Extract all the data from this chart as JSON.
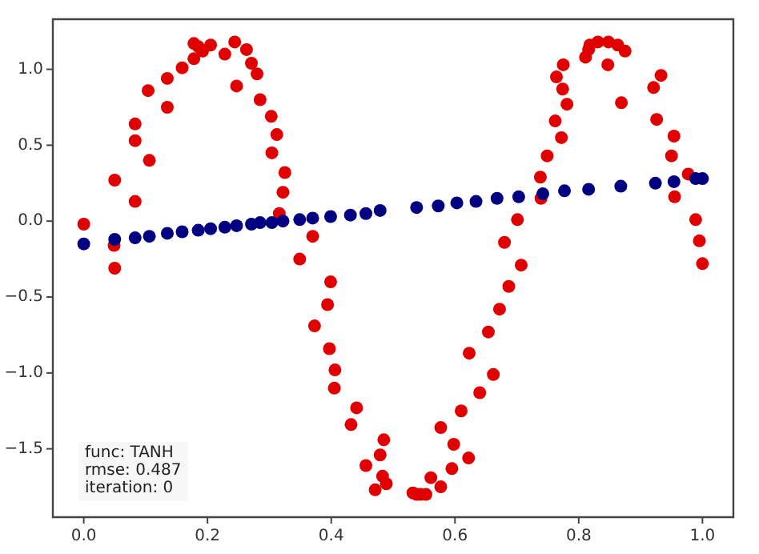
{
  "chart_data": {
    "type": "scatter",
    "xlim": [
      -0.05,
      1.05
    ],
    "ylim": [
      -1.95,
      1.33
    ],
    "xticks": [
      {
        "value": 0,
        "label": "0.0"
      },
      {
        "value": 0.2,
        "label": "0.2"
      },
      {
        "value": 0.4,
        "label": "0.4"
      },
      {
        "value": 0.6,
        "label": "0.6"
      },
      {
        "value": 0.8,
        "label": "0.8"
      },
      {
        "value": 1,
        "label": "1.0"
      }
    ],
    "yticks": [
      {
        "value": -1.5,
        "label": "−1.5"
      },
      {
        "value": -1,
        "label": "−1.0"
      },
      {
        "value": -0.5,
        "label": "−0.5"
      },
      {
        "value": 0,
        "label": "0.0"
      },
      {
        "value": 0.5,
        "label": "0.5"
      },
      {
        "value": 1,
        "label": "1.0"
      }
    ],
    "grid": false,
    "legend": false,
    "marker": "circle",
    "annotations": [
      "func: TANH",
      "rmse: 0.487",
      "iteration: 0"
    ],
    "series": [
      {
        "color": "#e00000",
        "x": [
          0.0,
          0.049,
          0.05,
          0.05,
          0.083,
          0.083,
          0.083,
          0.106,
          0.104,
          0.135,
          0.135,
          0.159,
          0.178,
          0.178,
          0.185,
          0.192,
          0.205,
          0.228,
          0.244,
          0.247,
          0.263,
          0.271,
          0.28,
          0.285,
          0.303,
          0.312,
          0.304,
          0.325,
          0.322,
          0.316,
          0.37,
          0.349,
          0.399,
          0.394,
          0.373,
          0.397,
          0.406,
          0.405,
          0.441,
          0.432,
          0.456,
          0.471,
          0.485,
          0.479,
          0.483,
          0.489,
          0.532,
          0.538,
          0.544,
          0.553,
          0.561,
          0.577,
          0.577,
          0.595,
          0.598,
          0.61,
          0.622,
          0.64,
          0.662,
          0.623,
          0.654,
          0.672,
          0.687,
          0.707,
          0.68,
          0.701,
          0.739,
          0.738,
          0.749,
          0.772,
          0.762,
          0.781,
          0.774,
          0.764,
          0.775,
          0.811,
          0.816,
          0.818,
          0.831,
          0.848,
          0.863,
          0.875,
          0.847,
          0.869,
          0.933,
          0.921,
          0.926,
          0.954,
          0.95,
          0.977,
          0.955,
          0.989,
          0.995,
          1.0
        ],
        "values": [
          -0.02,
          -0.16,
          -0.31,
          0.27,
          0.13,
          0.53,
          0.64,
          0.4,
          0.86,
          0.75,
          0.94,
          1.01,
          1.07,
          1.17,
          1.15,
          1.12,
          1.16,
          1.1,
          1.18,
          0.89,
          1.13,
          1.04,
          0.97,
          0.8,
          0.69,
          0.57,
          0.45,
          0.32,
          0.19,
          0.05,
          -0.1,
          -0.25,
          -0.4,
          -0.55,
          -0.69,
          -0.84,
          -0.98,
          -1.1,
          -1.23,
          -1.34,
          -1.61,
          -1.77,
          -1.44,
          -1.54,
          -1.68,
          -1.73,
          -1.79,
          -1.8,
          -1.8,
          -1.8,
          -1.69,
          -1.75,
          -1.36,
          -1.63,
          -1.47,
          -1.25,
          -1.56,
          -1.13,
          -1.01,
          -0.87,
          -0.73,
          -0.58,
          -0.43,
          -0.29,
          -0.14,
          0.01,
          0.15,
          0.29,
          0.43,
          0.55,
          0.66,
          0.77,
          0.87,
          0.95,
          1.03,
          1.08,
          1.13,
          1.16,
          1.18,
          1.18,
          1.16,
          1.12,
          1.03,
          0.78,
          0.96,
          0.88,
          0.67,
          0.56,
          0.43,
          0.31,
          0.16,
          0.01,
          -0.13,
          -0.28
        ]
      },
      {
        "color": "#000080",
        "x": [
          0.0,
          0.05,
          0.083,
          0.106,
          0.135,
          0.159,
          0.185,
          0.205,
          0.228,
          0.247,
          0.271,
          0.285,
          0.304,
          0.322,
          0.349,
          0.37,
          0.399,
          0.431,
          0.456,
          0.479,
          0.538,
          0.573,
          0.603,
          0.634,
          0.668,
          0.703,
          0.742,
          0.777,
          0.816,
          0.868,
          0.924,
          0.954,
          0.989,
          1.0
        ],
        "values": [
          -0.15,
          -0.12,
          -0.11,
          -0.1,
          -0.08,
          -0.07,
          -0.06,
          -0.05,
          -0.04,
          -0.03,
          -0.02,
          -0.01,
          -0.01,
          0.0,
          0.01,
          0.02,
          0.03,
          0.04,
          0.05,
          0.07,
          0.09,
          0.1,
          0.12,
          0.13,
          0.15,
          0.16,
          0.18,
          0.2,
          0.21,
          0.23,
          0.25,
          0.26,
          0.28,
          0.28
        ]
      }
    ]
  }
}
